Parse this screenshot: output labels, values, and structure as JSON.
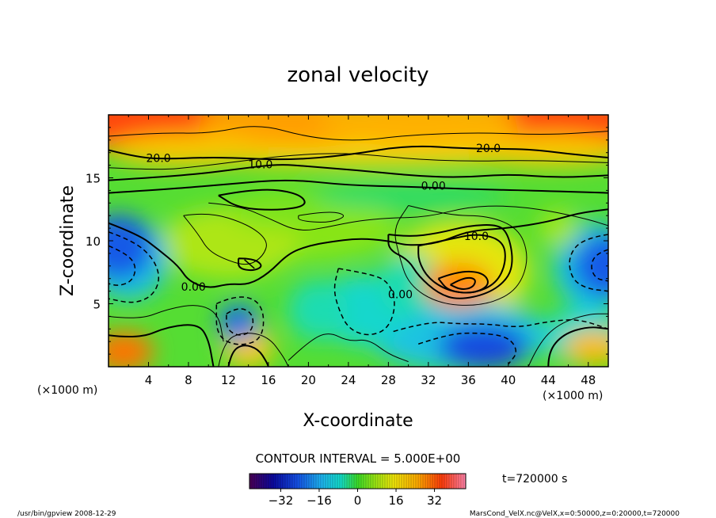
{
  "chart_data": {
    "type": "heatmap",
    "title": "zonal velocity",
    "xlabel": "X-coordinate",
    "ylabel": "Z-coordinate",
    "x_unit": "(×1000 m)",
    "x_unit_right": "(×1000 m)",
    "xlim": [
      0,
      50
    ],
    "ylim": [
      0,
      20
    ],
    "x_ticks": [
      4,
      8,
      12,
      16,
      20,
      24,
      28,
      32,
      36,
      40,
      44,
      48
    ],
    "y_ticks": [
      5,
      10,
      15
    ],
    "contour_interval_text": "CONTOUR INTERVAL = 5.000E+00",
    "contour_labels": [
      {
        "text": "20.0",
        "x": 5,
        "z": 16.5
      },
      {
        "text": "20.0",
        "x": 38,
        "z": 17.3
      },
      {
        "text": "10.0",
        "x": 15.2,
        "z": 16.0
      },
      {
        "text": "0.00",
        "x": 32.5,
        "z": 14.3
      },
      {
        "text": "10.0",
        "x": 36.8,
        "z": 10.3
      },
      {
        "text": "0.00",
        "x": 8.5,
        "z": 6.3
      },
      {
        "text": "0.00",
        "x": 29.2,
        "z": 5.7
      }
    ],
    "colorbar": {
      "ticks": [
        -32,
        -16,
        0,
        16,
        32
      ],
      "range": [
        -45,
        45
      ]
    },
    "time_label": "t=720000 s",
    "colors": {
      "neg_max": "#4b0055",
      "neg": "#0033cc",
      "zero": "#33dd22",
      "pos": "#ffcc00",
      "pos_max": "#ff3366"
    }
  },
  "footer": {
    "left": "/usr/bin/gpview  2008-12-29",
    "right": "MarsCond_VelX.nc@VelX,x=0:50000,z=0:20000,t=720000"
  }
}
